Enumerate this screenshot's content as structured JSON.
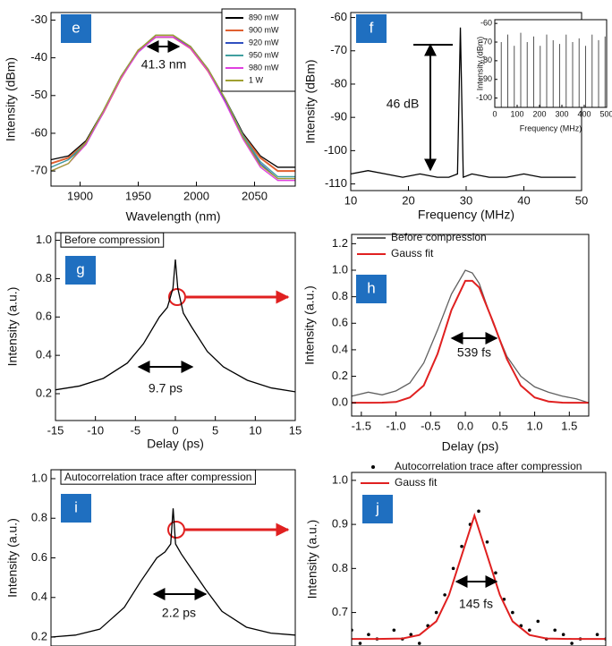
{
  "chart_data": [
    {
      "type": "line",
      "panel_label": "e",
      "xlabel": "Wavelength (nm)",
      "ylabel": "Intensity (dBm)",
      "xlim": [
        1875,
        2085
      ],
      "ylim": [
        -74,
        -28
      ],
      "xticks": [
        1900,
        1950,
        2000,
        2050
      ],
      "yticks": [
        -70,
        -60,
        -50,
        -40,
        -30
      ],
      "legend": "upper right",
      "legend_frame": true,
      "x": [
        1875,
        1890,
        1905,
        1920,
        1935,
        1950,
        1965,
        1980,
        1995,
        2010,
        2025,
        2040,
        2055,
        2070,
        2085
      ],
      "series": [
        {
          "name": "890 mW",
          "color": "#000000",
          "values": [
            -67,
            -66,
            -62,
            -54,
            -45,
            -38,
            -34.5,
            -34.5,
            -37,
            -43,
            -51,
            -60,
            -66,
            -69,
            -69
          ]
        },
        {
          "name": "900 mW",
          "color": "#e06030",
          "values": [
            -68,
            -66.5,
            -62.5,
            -54.5,
            -45.5,
            -38,
            -34.5,
            -34.5,
            -37.5,
            -43.5,
            -51.5,
            -60.5,
            -66.5,
            -70,
            -70
          ]
        },
        {
          "name": "920 mW",
          "color": "#3050c0",
          "values": [
            -69,
            -67,
            -63,
            -54.5,
            -45,
            -38.5,
            -34.5,
            -34.5,
            -37,
            -43,
            -51.5,
            -61,
            -68,
            -72,
            -72
          ]
        },
        {
          "name": "950 mW",
          "color": "#40a0a0",
          "values": [
            -69,
            -67,
            -62.5,
            -54,
            -45,
            -38,
            -34,
            -34,
            -37,
            -43,
            -51,
            -60.5,
            -67.5,
            -71.5,
            -71.5
          ]
        },
        {
          "name": "980 mW",
          "color": "#e040e0",
          "values": [
            -70,
            -68,
            -63,
            -54.5,
            -45.5,
            -38.5,
            -34.5,
            -34.5,
            -37.5,
            -43.5,
            -52,
            -61.5,
            -69,
            -72.5,
            -72.5
          ]
        },
        {
          "name": "1 W",
          "color": "#a0a030",
          "values": [
            -70,
            -68,
            -62.5,
            -54,
            -45,
            -38,
            -34,
            -34,
            -37,
            -43,
            -51,
            -61,
            -68.5,
            -72,
            -72
          ]
        }
      ],
      "annotations": [
        {
          "text": "41.3 nm"
        }
      ]
    },
    {
      "type": "line",
      "panel_label": "f",
      "xlabel": "Frequency (MHz)",
      "ylabel": "Intensity (dBm)",
      "xlim": [
        10,
        50
      ],
      "ylim": [
        -112,
        -58.5
      ],
      "xticks": [
        10,
        20,
        30,
        40,
        50
      ],
      "yticks": [
        -110,
        -100,
        -90,
        -80,
        -70,
        -60
      ],
      "x": [
        10,
        13,
        16,
        19,
        22,
        25,
        27,
        28.5,
        29,
        29.5,
        31,
        34,
        37,
        40,
        43,
        46,
        49
      ],
      "series": [
        {
          "color": "#000000",
          "values": [
            -107,
            -106,
            -107,
            -108,
            -107,
            -108,
            -108,
            -107,
            -63,
            -108,
            -107,
            -108,
            -108,
            -107,
            -108,
            -108,
            -108
          ]
        }
      ],
      "annotations": [
        {
          "text": "46 dB"
        }
      ]
    },
    {
      "type": "stem",
      "xlabel": "Frequency (MHz)",
      "ylabel": "Intensity (dBm)",
      "xlim": [
        0,
        500
      ],
      "ylim": [
        -105,
        -58
      ],
      "xticks": [
        0,
        100,
        200,
        300,
        400,
        500
      ],
      "yticks": [
        -100,
        -90,
        -80,
        -70,
        -60
      ],
      "x": [
        29,
        58,
        87,
        116,
        145,
        174,
        203,
        232,
        261,
        290,
        319,
        348,
        377,
        406,
        435,
        464,
        493
      ],
      "series": [
        {
          "color": "#555555",
          "values": [
            -70,
            -66,
            -72,
            -65,
            -70,
            -67,
            -72,
            -66,
            -69,
            -71,
            -66,
            -70,
            -68,
            -72,
            -66,
            -69,
            -67
          ]
        }
      ]
    },
    {
      "type": "line",
      "panel_label": "g",
      "title": "Before compression",
      "xlabel": "Delay (ps)",
      "ylabel": "Intensity (a.u.)",
      "xlim": [
        -15,
        15
      ],
      "ylim": [
        0.06,
        1.04
      ],
      "xticks": [
        -15,
        -10,
        -5,
        0,
        5,
        10,
        15
      ],
      "yticks": [
        0.2,
        0.4,
        0.6,
        0.8,
        {
          "value": 1,
          "label": "1.0"
        }
      ],
      "x": [
        -15,
        -12,
        -9,
        -6,
        -4,
        -2,
        -1,
        -0.3,
        0,
        0.3,
        1,
        2,
        4,
        6,
        9,
        12,
        15
      ],
      "series": [
        {
          "color": "#000000",
          "values": [
            0.22,
            0.24,
            0.28,
            0.36,
            0.46,
            0.6,
            0.65,
            0.75,
            0.9,
            0.75,
            0.62,
            0.55,
            0.42,
            0.34,
            0.27,
            0.23,
            0.21
          ]
        }
      ],
      "annotations": [
        {
          "text": "9.7 ps"
        }
      ]
    },
    {
      "type": "line",
      "panel_label": "h",
      "xlabel": "Delay (ps)",
      "ylabel": "Intensity (a.u.)",
      "xlim": [
        -1.64,
        1.78
      ],
      "ylim": [
        -0.1,
        1.27
      ],
      "xticks": [
        -1.5,
        {
          "value": -1,
          "label": "-1.0"
        },
        -0.5,
        {
          "value": 0,
          "label": "0.0"
        },
        0.5,
        {
          "value": 1,
          "label": "1.0"
        },
        1.5
      ],
      "yticks": [
        {
          "value": 0,
          "label": "0.0"
        },
        0.2,
        0.4,
        0.6,
        0.8,
        {
          "value": 1,
          "label": "1.0"
        },
        1.2
      ],
      "legend": "upper left",
      "x": [
        -1.64,
        -1.4,
        -1.2,
        -1.0,
        -0.8,
        -0.6,
        -0.4,
        -0.2,
        0,
        0.1,
        0.2,
        0.4,
        0.6,
        0.8,
        1.0,
        1.2,
        1.4,
        1.6,
        1.78
      ],
      "series": [
        {
          "name": "Before compression",
          "color": "#606060",
          "values": [
            0.05,
            0.08,
            0.06,
            0.09,
            0.15,
            0.3,
            0.55,
            0.82,
            1.0,
            0.98,
            0.9,
            0.6,
            0.35,
            0.2,
            0.12,
            0.08,
            0.05,
            0.03,
            0
          ]
        },
        {
          "name": "Gauss  fit",
          "color": "#e02020",
          "values": [
            0,
            0,
            0.001,
            0.006,
            0.04,
            0.13,
            0.37,
            0.7,
            0.92,
            0.92,
            0.87,
            0.61,
            0.33,
            0.13,
            0.04,
            0.01,
            0.001,
            0,
            0
          ]
        }
      ],
      "annotations": [
        {
          "text": "539 fs"
        }
      ]
    },
    {
      "type": "line",
      "panel_label": "i",
      "title": "Autocorrelation trace after compression",
      "ylabel": "Intensity (a.u.)",
      "xlim": [
        -15,
        15
      ],
      "ylim": [
        0.155,
        1.045
      ],
      "yticks": [
        0.2,
        0.4,
        0.6,
        0.8,
        {
          "value": 1,
          "label": "1.0"
        }
      ],
      "x": [
        -15,
        -12,
        -9,
        -6,
        -4,
        -2,
        -1,
        -0.3,
        0,
        0.3,
        1,
        2,
        4,
        6,
        9,
        12,
        15
      ],
      "series": [
        {
          "color": "#000000",
          "values": [
            0.2,
            0.21,
            0.24,
            0.35,
            0.48,
            0.6,
            0.63,
            0.67,
            0.85,
            0.67,
            0.62,
            0.56,
            0.44,
            0.33,
            0.25,
            0.22,
            0.21
          ]
        }
      ],
      "annotations": [
        {
          "text": "2.2 ps"
        }
      ]
    },
    {
      "type": "line",
      "panel_label": "j",
      "ylabel": "Intensity (a.u.)",
      "xlim": [
        -1.5,
        1.5
      ],
      "ylim": [
        0.624,
        1.018
      ],
      "yticks": [
        0.7,
        0.8,
        0.9,
        {
          "value": 1,
          "label": "1.0"
        }
      ],
      "legend": "upper left",
      "series": [
        {
          "name": "Autocorrelation trace after compression",
          "color": "#000000",
          "mode": "markers",
          "x": [
            -1.5,
            -1.4,
            -1.3,
            -1.2,
            -1.1,
            -1.0,
            -0.9,
            -0.8,
            -0.7,
            -0.6,
            -0.5,
            -0.4,
            -0.3,
            -0.2,
            -0.1,
            0,
            0.1,
            0.2,
            0.3,
            0.4,
            0.5,
            0.6,
            0.7,
            0.8,
            0.9,
            1.0,
            1.1,
            1.2,
            1.3,
            1.4,
            1.5
          ],
          "values": [
            0.66,
            0.63,
            0.65,
            0.64,
            0.62,
            0.66,
            0.64,
            0.65,
            0.63,
            0.67,
            0.7,
            0.74,
            0.8,
            0.85,
            0.9,
            0.93,
            0.86,
            0.79,
            0.73,
            0.7,
            0.67,
            0.66,
            0.68,
            0.64,
            0.66,
            0.65,
            0.63,
            0.64,
            0.62,
            0.65,
            0.64
          ]
        },
        {
          "name": "Gauss fit",
          "color": "#e02020",
          "mode": "line",
          "x": [
            -1.5,
            -1.2,
            -0.9,
            -0.7,
            -0.5,
            -0.35,
            -0.2,
            -0.05,
            0.1,
            0.25,
            0.4,
            0.6,
            0.8,
            1.1,
            1.5
          ],
          "values": [
            0.64,
            0.64,
            0.641,
            0.649,
            0.68,
            0.74,
            0.83,
            0.92,
            0.83,
            0.74,
            0.68,
            0.649,
            0.641,
            0.64,
            0.64
          ]
        }
      ],
      "annotations": [
        {
          "text": "145 fs"
        }
      ]
    }
  ]
}
